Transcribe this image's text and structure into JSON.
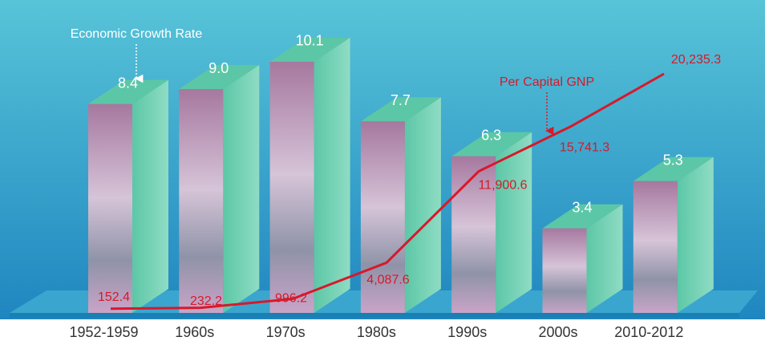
{
  "chart_data": {
    "type": "bar",
    "categories": [
      "1952-1959",
      "1960s",
      "1970s",
      "1980s",
      "1990s",
      "2000s",
      "2010-2012"
    ],
    "series": [
      {
        "name": "Economic Growth Rate",
        "color": "#5cc7a6",
        "values": [
          8.4,
          9.0,
          10.1,
          7.7,
          6.3,
          3.4,
          5.3
        ],
        "value_labels": [
          "8.4",
          "9.0",
          "10.1",
          "7.7",
          "6.3",
          "3.4",
          "5.3"
        ]
      },
      {
        "name": "Per Capital GNP",
        "color": "#d7192a",
        "type": "line",
        "axis": "y2",
        "values": [
          152.4,
          232.2,
          996.2,
          4087.6,
          11900.6,
          15741.3,
          20235.3
        ],
        "value_labels": [
          "152.4",
          "232.2",
          "996.2",
          "4,087.6",
          "11,900.6",
          "15,741.3",
          "20,235.3"
        ]
      }
    ]
  }
}
